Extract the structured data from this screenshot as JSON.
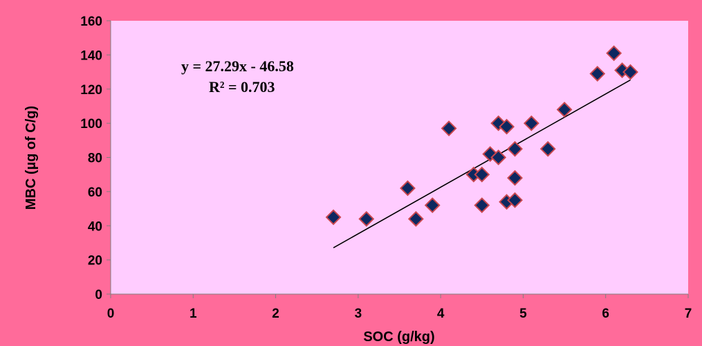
{
  "chart_data": {
    "type": "scatter",
    "title": "",
    "xlabel": "SOC (g/kg)",
    "ylabel": "MBC (µg  of C/g)",
    "xlim": [
      0,
      7
    ],
    "ylim": [
      0,
      160
    ],
    "xticks": [
      0,
      1,
      2,
      3,
      4,
      5,
      6,
      7
    ],
    "yticks": [
      0,
      20,
      40,
      60,
      80,
      100,
      120,
      140,
      160
    ],
    "grid": false,
    "legend": "none",
    "series": [
      {
        "points": [
          [
            2.7,
            45
          ],
          [
            3.1,
            44
          ],
          [
            3.6,
            62
          ],
          [
            3.7,
            44
          ],
          [
            3.9,
            52
          ],
          [
            4.1,
            97
          ],
          [
            4.4,
            70
          ],
          [
            4.5,
            70
          ],
          [
            4.5,
            52
          ],
          [
            4.6,
            82
          ],
          [
            4.7,
            100
          ],
          [
            4.7,
            80
          ],
          [
            4.8,
            98
          ],
          [
            4.8,
            54
          ],
          [
            4.9,
            85
          ],
          [
            4.9,
            68
          ],
          [
            4.9,
            55
          ],
          [
            5.1,
            100
          ],
          [
            5.3,
            85
          ],
          [
            5.5,
            108
          ],
          [
            5.9,
            129
          ],
          [
            6.1,
            141
          ],
          [
            6.2,
            131
          ],
          [
            6.3,
            130
          ]
        ]
      }
    ],
    "trendline": {
      "slope": 27.29,
      "intercept": -46.58,
      "x_range": [
        2.7,
        6.3
      ],
      "equation": "y = 27.29x - 46.58",
      "r_squared": "R² = 0.703"
    },
    "colors": {
      "background": "#ff6b9a",
      "plot_area": "#ffccff",
      "marker_fill": "#0d2860",
      "marker_edge": "#c8454d",
      "trendline": "#000000"
    }
  }
}
